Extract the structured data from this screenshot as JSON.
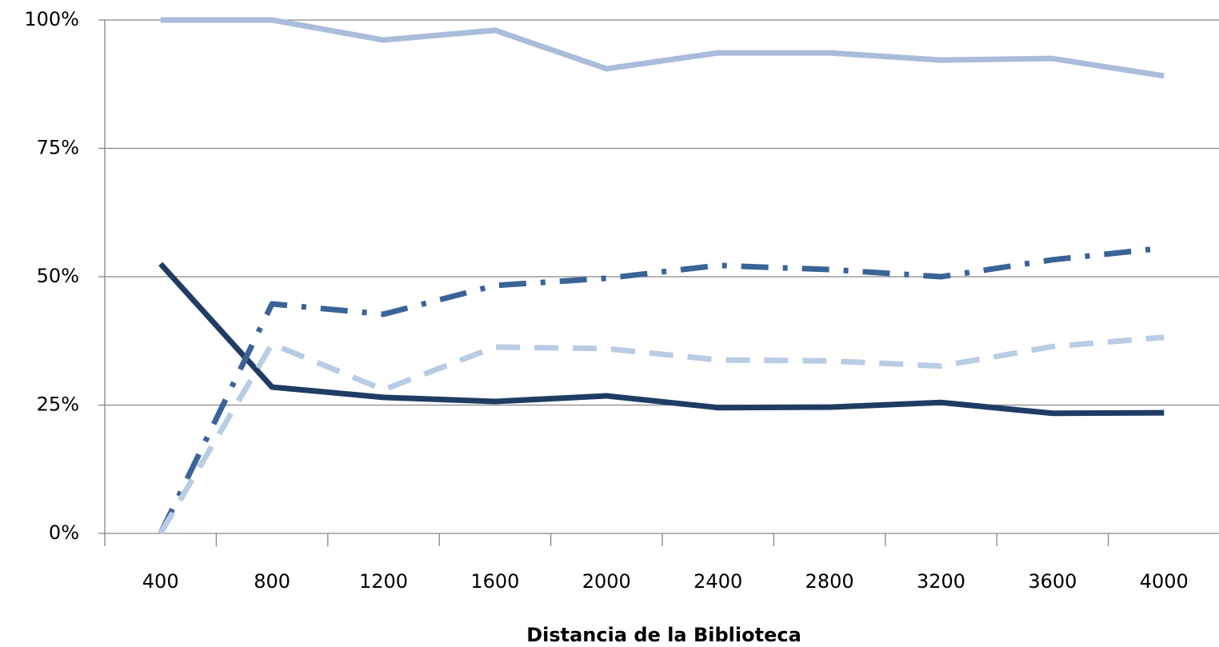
{
  "chart_data": {
    "type": "line",
    "x_label": "Distancia de la Biblioteca",
    "categories": [
      400,
      800,
      1200,
      1600,
      2000,
      2400,
      2800,
      3200,
      3600,
      4000
    ],
    "series": [
      {
        "color": "#a9bcd9",
        "line_style": "solid",
        "values": [
          100,
          100,
          96.1,
          98,
          90.5,
          93.6,
          93.6,
          92.2,
          92.5,
          89.1
        ]
      },
      {
        "color": "#1f3c64",
        "line_style": "solid",
        "values": [
          52.5,
          28.5,
          26.5,
          25.7,
          26.8,
          24.5,
          24.6,
          25.5,
          23.4,
          23.5
        ]
      },
      {
        "color": "#3a6497",
        "line_style": "dashdot",
        "values": [
          0,
          44.7,
          42.7,
          48.3,
          49.7,
          52.2,
          51.4,
          50,
          53.3,
          55.6
        ]
      },
      {
        "color": "#b8cce4",
        "line_style": "dash",
        "values": [
          0,
          36.9,
          28,
          36.3,
          36,
          33.8,
          33.6,
          32.6,
          36.4,
          38.2
        ]
      }
    ],
    "ylim": [
      0,
      100
    ],
    "yticks": [
      {
        "value": 0,
        "label": "0%"
      },
      {
        "value": 25,
        "label": "25%"
      },
      {
        "value": 50,
        "label": "50%"
      },
      {
        "value": 75,
        "label": "75%"
      },
      {
        "value": 100,
        "label": "100%"
      }
    ],
    "grid": true
  }
}
